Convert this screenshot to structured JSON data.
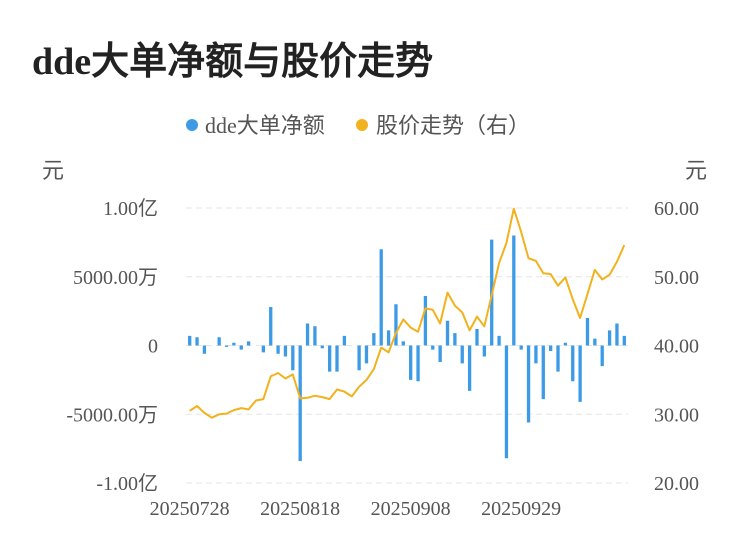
{
  "chart_data": {
    "type": "bar+line",
    "title": "dde大单净额与股价走势",
    "left_unit": "元",
    "right_unit": "元",
    "legend": {
      "bar_label": "dde大单净额",
      "line_label": "股价走势（右）",
      "bar_color": "#3d9be6",
      "line_color": "#f2b21d"
    },
    "x_ticks": [
      "20250728",
      "20250818",
      "20250908",
      "20250929"
    ],
    "x_tick_index": [
      0,
      15,
      30,
      45
    ],
    "y_left": {
      "ticks": [
        "1.00亿",
        "5000.00万",
        "0",
        "-5000.00万",
        "-1.00亿"
      ],
      "values": [
        10000,
        5000,
        0,
        -5000,
        -10000
      ],
      "unit": "万"
    },
    "y_right": {
      "ticks": [
        "60.00",
        "50.00",
        "40.00",
        "30.00",
        "20.00"
      ],
      "values": [
        60,
        50,
        40,
        30,
        20
      ]
    },
    "bars": [
      700,
      600,
      -600,
      0,
      600,
      -100,
      200,
      -300,
      300,
      0,
      -500,
      2800,
      -600,
      -800,
      -1800,
      -8400,
      1600,
      1400,
      -200,
      -1900,
      -1900,
      700,
      0,
      -1800,
      -1300,
      900,
      7000,
      1100,
      3000,
      300,
      -2500,
      -2600,
      3600,
      -300,
      -1200,
      1800,
      900,
      -1300,
      -3300,
      1200,
      -800,
      7700,
      700,
      -8200,
      8000,
      -300,
      -5600,
      -1300,
      -3900,
      -400,
      -1900,
      200,
      -2600,
      -4100,
      2000,
      500,
      -1500,
      1100,
      1600,
      700
    ],
    "prices": [
      30.5,
      31.2,
      30.2,
      29.5,
      30.0,
      30.1,
      30.6,
      30.9,
      30.7,
      32.0,
      32.2,
      35.5,
      36.0,
      35.2,
      35.8,
      32.3,
      32.4,
      32.7,
      32.5,
      32.2,
      33.6,
      33.3,
      32.6,
      34.0,
      35.0,
      36.6,
      39.7,
      39.0,
      41.8,
      43.8,
      42.6,
      42.0,
      45.4,
      45.2,
      43.2,
      47.7,
      45.8,
      44.8,
      42.2,
      44.2,
      42.8,
      47.3,
      52.0,
      54.9,
      59.9,
      56.5,
      52.7,
      52.3,
      50.5,
      50.4,
      48.7,
      49.9,
      46.7,
      44.0,
      47.5,
      51.0,
      49.6,
      50.3,
      52.2,
      54.6
    ]
  }
}
